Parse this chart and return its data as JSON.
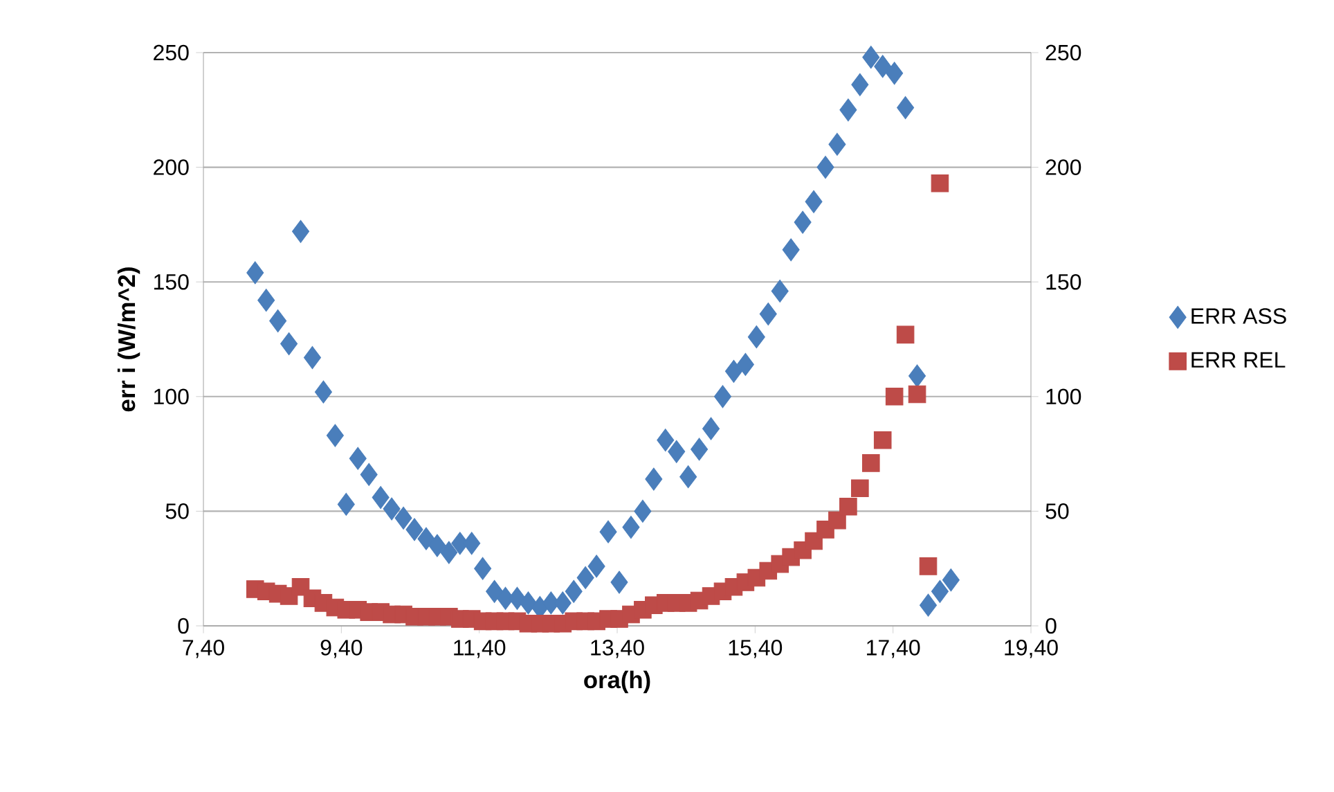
{
  "chart_data": {
    "type": "scatter",
    "xlabel": "ora(h)",
    "ylabel": "err i (W/m^2)",
    "x": [
      8.15,
      8.31,
      8.48,
      8.64,
      8.81,
      8.98,
      9.14,
      9.31,
      9.47,
      9.64,
      9.8,
      9.97,
      10.13,
      10.3,
      10.46,
      10.63,
      10.79,
      10.96,
      11.12,
      11.29,
      11.45,
      11.62,
      11.78,
      11.95,
      12.11,
      12.28,
      12.44,
      12.61,
      12.77,
      12.94,
      13.1,
      13.27,
      13.43,
      13.6,
      13.77,
      13.93,
      14.1,
      14.26,
      14.43,
      14.59,
      14.76,
      14.93,
      15.09,
      15.26,
      15.42,
      15.59,
      15.76,
      15.92,
      16.09,
      16.25,
      16.42,
      16.59,
      16.75,
      16.92,
      17.08,
      17.25,
      17.42,
      17.58,
      17.75,
      17.91,
      18.08,
      18.24
    ],
    "series": [
      {
        "name": "ERR ASS",
        "color": "#4a7ebb",
        "marker": "diamond",
        "values": [
          154,
          142,
          133,
          123,
          172,
          117,
          102,
          83,
          53,
          73,
          66,
          56,
          51,
          47,
          42,
          38,
          35,
          32,
          36,
          36,
          25,
          15,
          12,
          12,
          10,
          8,
          10,
          10,
          15,
          21,
          26,
          41,
          19,
          43,
          50,
          64,
          81,
          76,
          65,
          77,
          86,
          100,
          111,
          114,
          126,
          136,
          146,
          164,
          176,
          185,
          200,
          210,
          225,
          236,
          248,
          244,
          241,
          226,
          109,
          9,
          15,
          20
        ]
      },
      {
        "name": "ERR REL",
        "color": "#be4b48",
        "marker": "square",
        "axis": "y2",
        "values": [
          16,
          15,
          14,
          13,
          17,
          12,
          10,
          8,
          7,
          7,
          6,
          6,
          5,
          5,
          4,
          4,
          4,
          4,
          3,
          3,
          2,
          2,
          2,
          2,
          1,
          1,
          1,
          1,
          2,
          2,
          2,
          3,
          3,
          5,
          7,
          9,
          10,
          10,
          10,
          11,
          13,
          15,
          17,
          19,
          21,
          24,
          27,
          30,
          33,
          37,
          42,
          46,
          52,
          60,
          71,
          81,
          100,
          127,
          101,
          26,
          193,
          null
        ]
      }
    ],
    "xlim": [
      7.4,
      19.4
    ],
    "xticks": [
      {
        "value": 7.4,
        "label": "7,40"
      },
      {
        "value": 9.4,
        "label": "9,40"
      },
      {
        "value": 11.4,
        "label": "11,40"
      },
      {
        "value": 13.4,
        "label": "13,40"
      },
      {
        "value": 15.4,
        "label": "15,40"
      },
      {
        "value": 17.4,
        "label": "17,40"
      },
      {
        "value": 19.4,
        "label": "19,40"
      }
    ],
    "ylim": [
      0,
      250
    ],
    "yticks": [
      0,
      50,
      100,
      150,
      200,
      250
    ],
    "y2lim": [
      0,
      250
    ],
    "y2ticks": [
      0,
      50,
      100,
      150,
      200,
      250
    ],
    "grid": "y",
    "legend": "right"
  }
}
